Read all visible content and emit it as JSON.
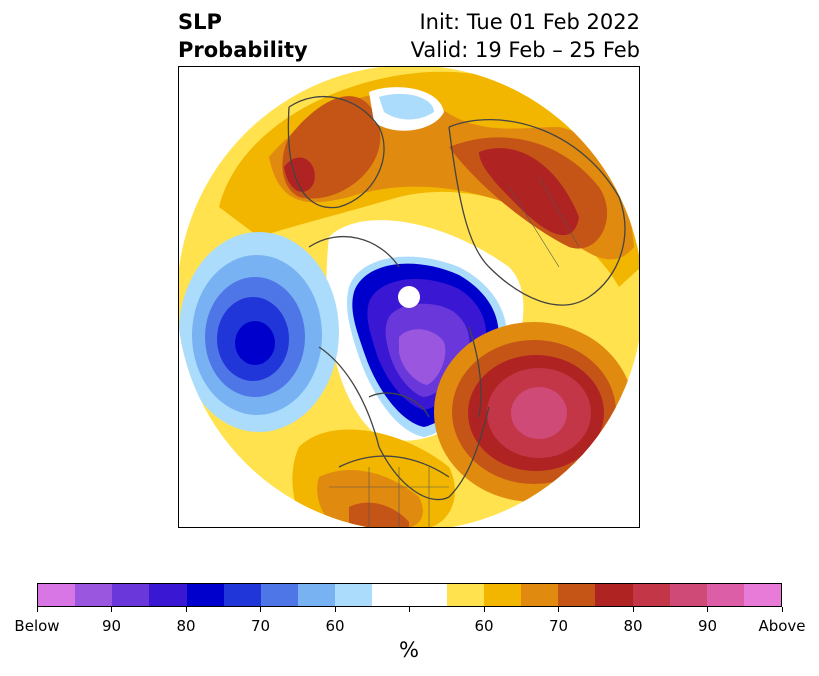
{
  "title": {
    "left_line1": "SLP",
    "left_line2": "Probability",
    "right_line1": "Init: Tue 01 Feb 2022",
    "right_line2": "Valid: 19 Feb – 25 Feb"
  },
  "colorbar": {
    "colors": [
      "#d876e6",
      "#9b56e0",
      "#6a37db",
      "#3a17d3",
      "#0000cc",
      "#2136d9",
      "#4f76e6",
      "#78b2f2",
      "#abdcfb",
      "#ffffff",
      "#ffffff",
      "#ffe24d",
      "#f2b600",
      "#e08a0f",
      "#c45516",
      "#b02323",
      "#c23648",
      "#d04a78",
      "#dc5ea6",
      "#e87ad8"
    ],
    "tick_labels": [
      "Below",
      "90",
      "80",
      "70",
      "60",
      "",
      "60",
      "70",
      "80",
      "90",
      "Above"
    ],
    "unit": "%"
  },
  "map": {
    "regions": [
      {
        "name": "north-pacific-below-center",
        "category": "below",
        "level": "80"
      },
      {
        "name": "arctic-canada-below-center",
        "category": "below",
        "level": "90"
      },
      {
        "name": "north-atlantic-above-center",
        "category": "above",
        "level": "90"
      },
      {
        "name": "siberia-above-center",
        "category": "above",
        "level": "80"
      },
      {
        "name": "scandinavia-above-center",
        "category": "above",
        "level": "80"
      }
    ]
  }
}
